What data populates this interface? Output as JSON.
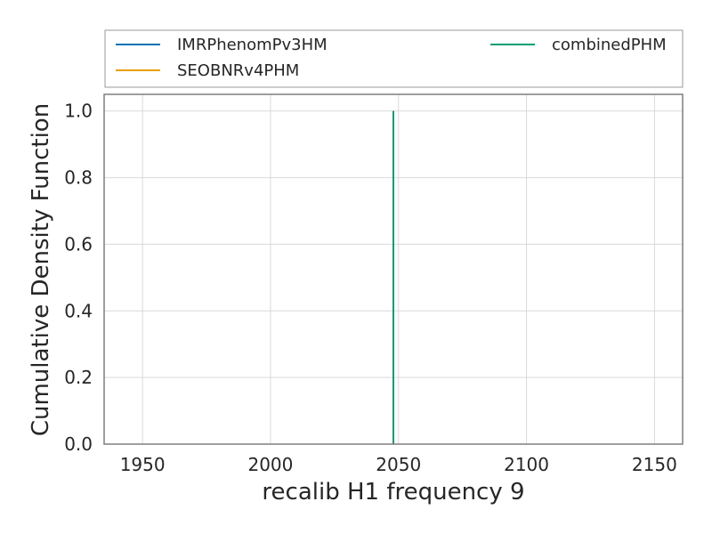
{
  "chart_data": {
    "type": "line",
    "title": "",
    "xlabel": "recalib H1 frequency 9",
    "ylabel": "Cumulative Density Function",
    "xlim": [
      1935,
      2161
    ],
    "ylim": [
      0.0,
      1.05
    ],
    "xticks": [
      1950,
      2000,
      2050,
      2100,
      2150
    ],
    "yticks": [
      0.0,
      0.2,
      0.4,
      0.6,
      0.8,
      1.0
    ],
    "xtick_labels": [
      "1950",
      "2000",
      "2050",
      "2100",
      "2150"
    ],
    "ytick_labels": [
      "0.0",
      "0.2",
      "0.4",
      "0.6",
      "0.8",
      "1.0"
    ],
    "grid": true,
    "legend_position": "top (above plot, 2 columns)",
    "series": [
      {
        "name": "IMRPhenomPv3HM",
        "color": "#0072b2",
        "x": [
          2048,
          2048
        ],
        "y": [
          0.0,
          1.0
        ]
      },
      {
        "name": "SEOBNRv4PHM",
        "color": "#e69f00",
        "x": [
          2048,
          2048
        ],
        "y": [
          0.0,
          1.0
        ]
      },
      {
        "name": "combinedPHM",
        "color": "#009e73",
        "x": [
          2048,
          2048
        ],
        "y": [
          0.0,
          1.0
        ]
      }
    ]
  }
}
